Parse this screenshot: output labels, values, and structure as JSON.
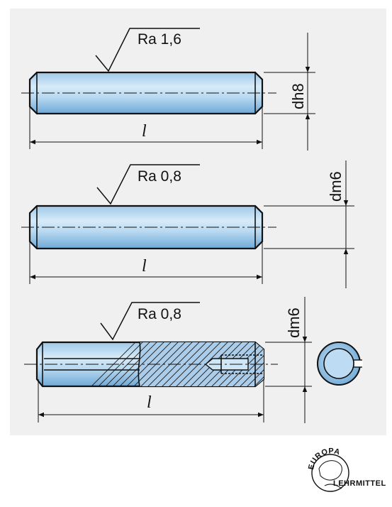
{
  "pins": [
    {
      "roughness": "Ra  1,6",
      "length_label": "l",
      "dim_label": "dh8"
    },
    {
      "roughness": "Ra  0,8",
      "length_label": "l",
      "dim_label": "dm6"
    },
    {
      "roughness": "Ra  0,8",
      "length_label": "l",
      "dim_label": "dm6"
    }
  ],
  "logo": {
    "top_text": "EUROPA",
    "bottom_text": "LEHRMITTEL"
  }
}
